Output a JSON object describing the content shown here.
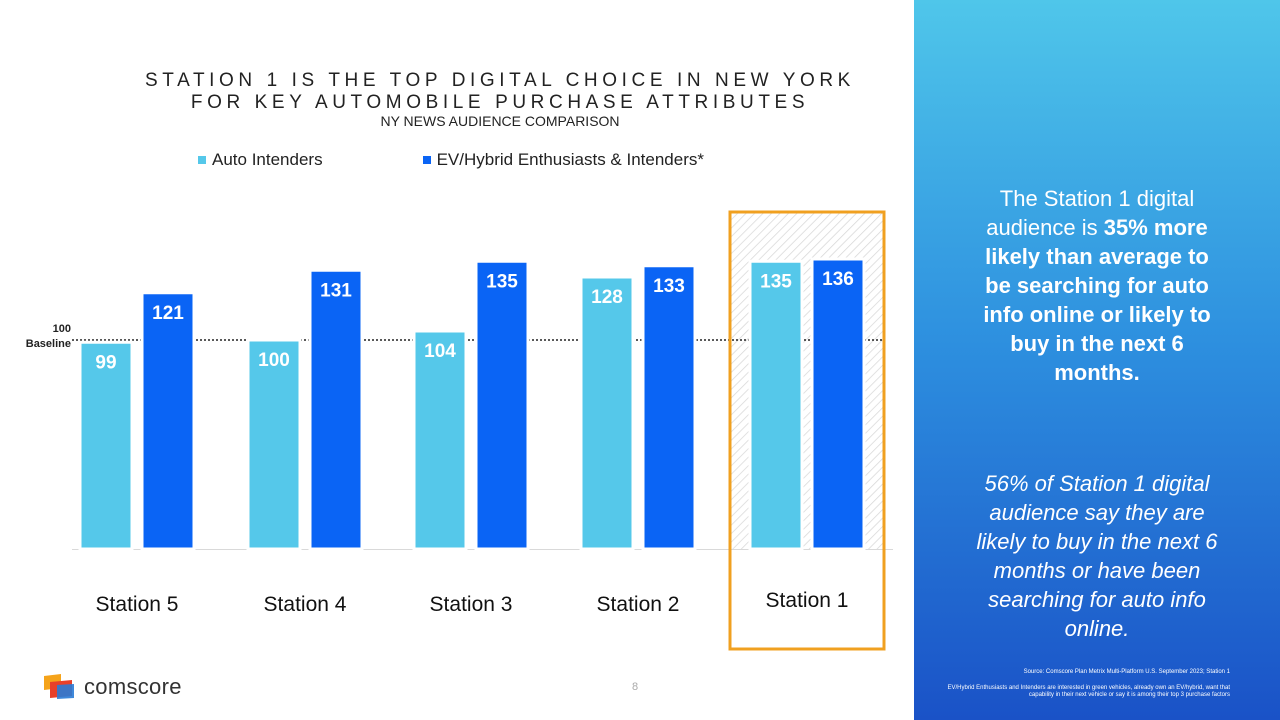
{
  "header": {
    "title_line1": "STATION 1 IS THE TOP DIGITAL CHOICE IN NEW YORK",
    "title_line2": "FOR KEY AUTOMOBILE PURCHASE ATTRIBUTES",
    "subtitle": "NY NEWS AUDIENCE COMPARISON"
  },
  "chart_data": {
    "type": "bar",
    "categories": [
      "Station 5",
      "Station 4",
      "Station 3",
      "Station 2",
      "Station 1"
    ],
    "series": [
      {
        "name": "Auto Intenders",
        "values": [
          99,
          100,
          104,
          128,
          135
        ],
        "color": "#55c8ea"
      },
      {
        "name": "EV/Hybrid Enthusiasts & Intenders*",
        "values": [
          121,
          131,
          135,
          133,
          136
        ],
        "color": "#0a64f5"
      }
    ],
    "baseline": {
      "value": 100,
      "label_value": "100",
      "label_text": "Baseline"
    },
    "highlight_category": "Station 1",
    "highlight_color": "#f0a020",
    "ylim": [
      0,
      150
    ],
    "xlabel": "",
    "ylabel": ""
  },
  "panel": {
    "text1_pre": "The Station 1 digital audience is ",
    "text1_bold1": "35%",
    "text1_bold2": " more likely than average to be searching for auto info online or likely to buy in the next 6 months.",
    "text2": "56% of Station 1 digital audience say they are likely to buy in the next 6 months or have been searching for auto info online.",
    "source": "Source: Comscore Plan Metrix Multi-Platform U.S. September 2023; Station 1",
    "footnote": "EV/Hybrid Enthusiasts and Intenders are interested in green vehicles, already own an EV/hybrid, want that capability in their next vehicle or say it is among their top 3 purchase factors"
  },
  "footer": {
    "brand": "comscore",
    "page_number": "8"
  },
  "colors": {
    "brand_red": "#e8402a",
    "brand_orange": "#f5a31a",
    "brand_blue": "#2a7bd6"
  }
}
